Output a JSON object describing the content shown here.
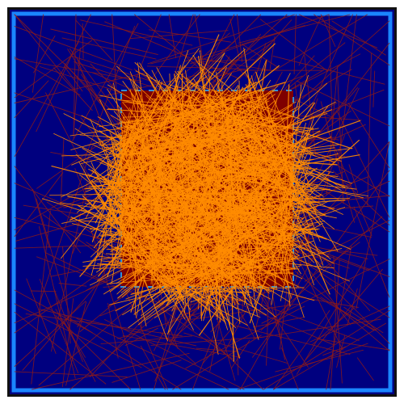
{
  "scene": {
    "colors": {
      "outer_background": "#ffffff",
      "outer_border": "#111111",
      "field_background": "#00007f",
      "outer_wall": "#1a86ff",
      "inner_region": "#7f0000",
      "inner_wall": "#2e8fdb",
      "active_rays": "#ff8c00",
      "faint_rays": "#8b1a1a"
    }
  }
}
